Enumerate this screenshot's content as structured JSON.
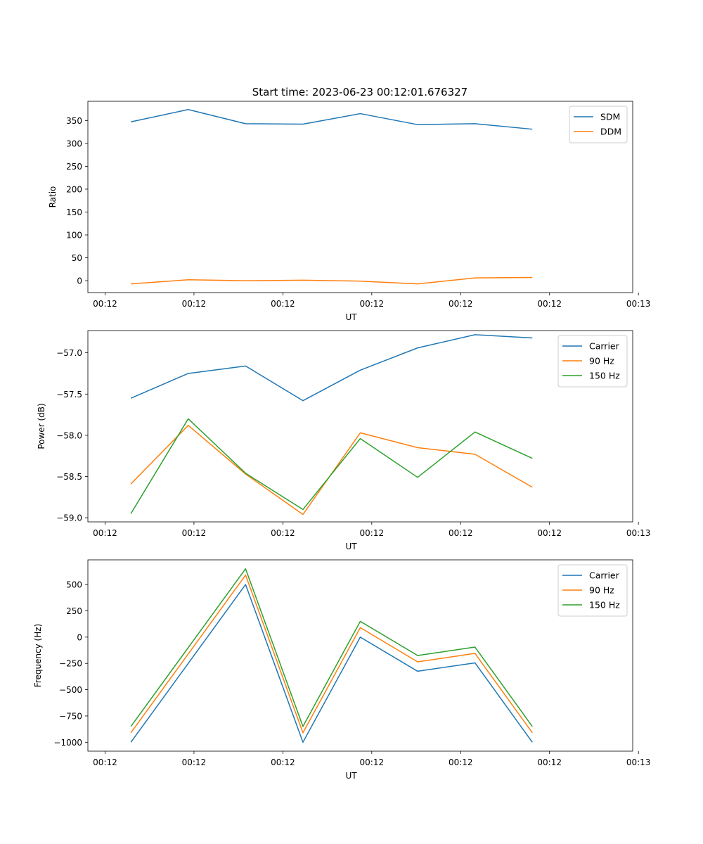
{
  "figure_title": "Start time: 2023-06-23 00:12:01.676327",
  "colors": {
    "blue": "#1f77b4",
    "orange": "#ff7f0e",
    "green": "#2ca02c"
  },
  "chart_data": [
    {
      "type": "line",
      "title": "Start time: 2023-06-23 00:12:01.676327",
      "xlabel": "UT",
      "ylabel": "Ratio",
      "x": [
        1,
        2,
        3,
        4,
        5,
        6,
        7,
        8
      ],
      "xlim": [
        0.25,
        9.75
      ],
      "xticks": [
        0.55,
        2.1,
        3.65,
        5.2,
        6.75,
        8.3,
        9.85
      ],
      "xtick_labels": [
        "00:12",
        "00:12",
        "00:12",
        "00:12",
        "00:12",
        "00:12",
        "00:13"
      ],
      "ylim": [
        -26,
        392
      ],
      "yticks": [
        0,
        50,
        100,
        150,
        200,
        250,
        300,
        350
      ],
      "ytick_labels": [
        "0",
        "50",
        "100",
        "150",
        "200",
        "250",
        "300",
        "350"
      ],
      "grid": false,
      "legend": "top-right",
      "series": [
        {
          "name": "SDM",
          "color": "blue",
          "values": [
            347,
            374,
            343,
            342,
            365,
            341,
            343,
            331
          ]
        },
        {
          "name": "DDM",
          "color": "orange",
          "values": [
            -7,
            2,
            0,
            1,
            -1,
            -7,
            6,
            7
          ]
        }
      ]
    },
    {
      "type": "line",
      "title": "",
      "xlabel": "UT",
      "ylabel": "Power (dB)",
      "x": [
        1,
        2,
        3,
        4,
        5,
        6,
        7,
        8
      ],
      "xlim": [
        0.25,
        9.75
      ],
      "xticks": [
        0.55,
        2.1,
        3.65,
        5.2,
        6.75,
        8.3,
        9.85
      ],
      "xtick_labels": [
        "00:12",
        "00:12",
        "00:12",
        "00:12",
        "00:12",
        "00:12",
        "00:13"
      ],
      "ylim": [
        -59.05,
        -56.73
      ],
      "yticks": [
        -59.0,
        -58.5,
        -58.0,
        -57.5,
        -57.0
      ],
      "ytick_labels": [
        "−59.0",
        "−58.5",
        "−58.0",
        "−57.5",
        "−57.0"
      ],
      "grid": false,
      "legend": "top-right",
      "series": [
        {
          "name": "Carrier",
          "color": "blue",
          "values": [
            -57.55,
            -57.25,
            -57.16,
            -57.58,
            -57.21,
            -56.94,
            -56.78,
            -56.82
          ]
        },
        {
          "name": "90 Hz",
          "color": "orange",
          "values": [
            -58.59,
            -57.88,
            -58.47,
            -58.96,
            -57.97,
            -58.15,
            -58.23,
            -58.63
          ]
        },
        {
          "name": "150 Hz",
          "color": "green",
          "values": [
            -58.95,
            -57.8,
            -58.46,
            -58.9,
            -58.04,
            -58.51,
            -57.96,
            -58.28
          ]
        }
      ]
    },
    {
      "type": "line",
      "title": "",
      "xlabel": "UT",
      "ylabel": "Frequency (Hz)",
      "x": [
        1,
        2,
        3,
        4,
        5,
        6,
        7,
        8
      ],
      "xlim": [
        0.25,
        9.75
      ],
      "xticks": [
        0.55,
        2.1,
        3.65,
        5.2,
        6.75,
        8.3,
        9.85
      ],
      "xtick_labels": [
        "00:12",
        "00:12",
        "00:12",
        "00:12",
        "00:12",
        "00:12",
        "00:13"
      ],
      "ylim": [
        -1085,
        735
      ],
      "yticks": [
        -1000,
        -750,
        -500,
        -250,
        0,
        250,
        500
      ],
      "ytick_labels": [
        "−1000",
        "−750",
        "−500",
        "−250",
        "0",
        "250",
        "500"
      ],
      "grid": false,
      "legend": "top-right",
      "series": [
        {
          "name": "Carrier",
          "color": "blue",
          "values": [
            -1000,
            -250,
            500,
            -1000,
            0,
            -325,
            -245,
            -1000
          ]
        },
        {
          "name": "90 Hz",
          "color": "orange",
          "values": [
            -910,
            -160,
            590,
            -910,
            90,
            -235,
            -155,
            -910
          ]
        },
        {
          "name": "150 Hz",
          "color": "green",
          "values": [
            -850,
            -100,
            650,
            -850,
            150,
            -175,
            -95,
            -850
          ]
        }
      ]
    }
  ]
}
